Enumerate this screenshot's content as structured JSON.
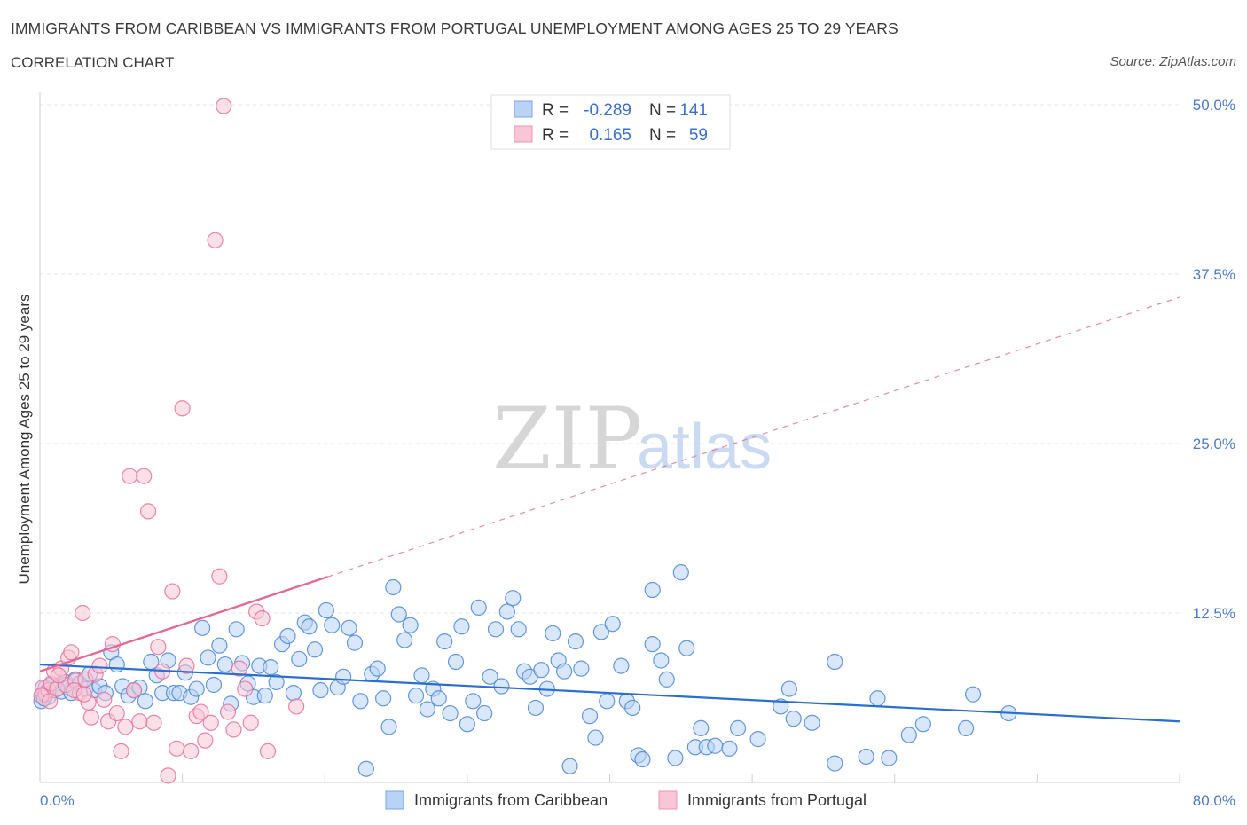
{
  "title": "IMMIGRANTS FROM CARIBBEAN VS IMMIGRANTS FROM PORTUGAL UNEMPLOYMENT AMONG AGES 25 TO 29 YEARS",
  "subtitle": "CORRELATION CHART",
  "source": "Source: ZipAtlas.com",
  "watermark": {
    "zip": "ZIP",
    "atlas": "atlas"
  },
  "legend": {
    "r_label": "R =",
    "n_label": "N =",
    "rows": [
      {
        "r": "-0.289",
        "n": "141",
        "fill": "#b9d3f5",
        "stroke": "#7aa6e6"
      },
      {
        "r": "0.165",
        "n": "59",
        "fill": "#f8c6d6",
        "stroke": "#ee93b2"
      }
    ]
  },
  "chart_data": {
    "type": "scatter",
    "title": "IMMIGRANTS FROM CARIBBEAN VS IMMIGRANTS FROM PORTUGAL UNEMPLOYMENT AMONG AGES 25 TO 29 YEARS",
    "xlabel": "",
    "ylabel": "Unemployment Among Ages 25 to 29 years",
    "xlim": [
      0,
      80
    ],
    "ylim": [
      0,
      50
    ],
    "x_tick_labels": [
      "0.0%",
      "80.0%"
    ],
    "y_ticks": [
      12.5,
      25.0,
      37.5,
      50.0
    ],
    "y_tick_labels": [
      "12.5%",
      "25.0%",
      "37.5%",
      "50.0%"
    ],
    "grid": true,
    "legend_placement": "top-center",
    "series": [
      {
        "name": "Immigrants from Caribbean",
        "color": "#4a86d8",
        "fill": "#b9d3f5",
        "trend": {
          "x": [
            0,
            80
          ],
          "y": [
            8.7,
            4.5
          ],
          "style": "solid",
          "color": "#2a6fd0"
        },
        "points": [
          [
            0.2,
            6.5
          ],
          [
            0.4,
            7.0
          ],
          [
            0.6,
            6.3
          ],
          [
            0.8,
            7.2
          ],
          [
            1.0,
            6.8
          ],
          [
            1.2,
            6.9
          ],
          [
            1.5,
            6.7
          ],
          [
            1.8,
            7.4
          ],
          [
            2.0,
            7.0
          ],
          [
            2.2,
            6.6
          ],
          [
            2.5,
            7.6
          ],
          [
            2.8,
            7.3
          ],
          [
            3.2,
            6.9
          ],
          [
            3.5,
            8.0
          ],
          [
            3.8,
            6.8
          ],
          [
            4.2,
            7.1
          ],
          [
            4.6,
            6.6
          ],
          [
            5.0,
            9.6
          ],
          [
            5.4,
            8.7
          ],
          [
            5.8,
            7.1
          ],
          [
            6.2,
            6.4
          ],
          [
            6.6,
            6.8
          ],
          [
            7.0,
            7.0
          ],
          [
            7.4,
            6.0
          ],
          [
            7.8,
            8.9
          ],
          [
            8.2,
            7.9
          ],
          [
            8.6,
            6.6
          ],
          [
            9.0,
            9.0
          ],
          [
            9.4,
            6.6
          ],
          [
            9.8,
            6.6
          ],
          [
            10.2,
            8.1
          ],
          [
            10.6,
            6.3
          ],
          [
            11.0,
            6.9
          ],
          [
            11.4,
            11.4
          ],
          [
            11.8,
            9.2
          ],
          [
            12.2,
            7.2
          ],
          [
            12.6,
            10.1
          ],
          [
            13.0,
            8.7
          ],
          [
            13.4,
            5.8
          ],
          [
            13.8,
            11.3
          ],
          [
            14.2,
            8.8
          ],
          [
            14.6,
            7.3
          ],
          [
            15.0,
            6.3
          ],
          [
            15.4,
            8.6
          ],
          [
            15.8,
            6.4
          ],
          [
            16.2,
            8.5
          ],
          [
            16.6,
            7.4
          ],
          [
            17.0,
            10.2
          ],
          [
            17.4,
            10.8
          ],
          [
            17.8,
            6.6
          ],
          [
            18.2,
            9.1
          ],
          [
            18.6,
            11.8
          ],
          [
            18.9,
            11.5
          ],
          [
            19.3,
            9.8
          ],
          [
            19.7,
            6.8
          ],
          [
            20.1,
            12.7
          ],
          [
            20.5,
            11.6
          ],
          [
            20.9,
            7.0
          ],
          [
            21.3,
            7.8
          ],
          [
            21.7,
            11.4
          ],
          [
            22.1,
            10.3
          ],
          [
            22.5,
            6.0
          ],
          [
            22.9,
            1.0
          ],
          [
            23.3,
            8.0
          ],
          [
            23.7,
            8.4
          ],
          [
            24.1,
            6.2
          ],
          [
            24.5,
            4.1
          ],
          [
            24.8,
            14.4
          ],
          [
            25.2,
            12.4
          ],
          [
            25.6,
            10.5
          ],
          [
            26.0,
            11.6
          ],
          [
            26.4,
            6.4
          ],
          [
            26.8,
            7.9
          ],
          [
            27.2,
            5.4
          ],
          [
            27.6,
            6.9
          ],
          [
            28.0,
            6.2
          ],
          [
            28.4,
            10.4
          ],
          [
            28.8,
            5.1
          ],
          [
            29.2,
            8.9
          ],
          [
            29.6,
            11.5
          ],
          [
            30.0,
            4.3
          ],
          [
            30.4,
            6.0
          ],
          [
            30.8,
            12.9
          ],
          [
            31.2,
            5.1
          ],
          [
            31.6,
            7.8
          ],
          [
            32.0,
            11.3
          ],
          [
            32.4,
            7.1
          ],
          [
            32.8,
            12.6
          ],
          [
            33.2,
            13.6
          ],
          [
            33.6,
            11.3
          ],
          [
            34.0,
            8.2
          ],
          [
            34.4,
            7.8
          ],
          [
            34.8,
            5.5
          ],
          [
            35.2,
            8.3
          ],
          [
            35.6,
            6.9
          ],
          [
            36.0,
            11.0
          ],
          [
            36.4,
            9.0
          ],
          [
            36.8,
            8.2
          ],
          [
            37.2,
            1.2
          ],
          [
            37.6,
            10.4
          ],
          [
            38.0,
            8.4
          ],
          [
            38.6,
            4.9
          ],
          [
            39.0,
            3.3
          ],
          [
            39.4,
            11.1
          ],
          [
            39.8,
            6.0
          ],
          [
            40.2,
            11.7
          ],
          [
            40.8,
            8.6
          ],
          [
            41.2,
            6.0
          ],
          [
            41.6,
            5.5
          ],
          [
            42.0,
            2.0
          ],
          [
            42.3,
            1.7
          ],
          [
            43.0,
            10.2
          ],
          [
            43.0,
            14.2
          ],
          [
            43.6,
            9.0
          ],
          [
            44.0,
            7.6
          ],
          [
            44.6,
            1.8
          ],
          [
            45.0,
            15.5
          ],
          [
            45.4,
            9.9
          ],
          [
            46.0,
            2.6
          ],
          [
            46.4,
            4.0
          ],
          [
            46.8,
            2.6
          ],
          [
            47.4,
            2.7
          ],
          [
            48.4,
            2.5
          ],
          [
            49.0,
            4.0
          ],
          [
            50.4,
            3.2
          ],
          [
            52.0,
            5.6
          ],
          [
            52.6,
            6.9
          ],
          [
            52.9,
            4.7
          ],
          [
            54.2,
            4.4
          ],
          [
            55.8,
            1.4
          ],
          [
            55.8,
            8.9
          ],
          [
            58.0,
            1.9
          ],
          [
            58.8,
            6.2
          ],
          [
            59.6,
            1.8
          ],
          [
            61.0,
            3.5
          ],
          [
            62.0,
            4.3
          ],
          [
            65.0,
            4.0
          ],
          [
            65.5,
            6.5
          ],
          [
            68.0,
            5.1
          ],
          [
            0.1,
            6.0
          ],
          [
            0.3,
            6.2
          ]
        ]
      },
      {
        "name": "Immigrants from Portugal",
        "color": "#e8709a",
        "fill": "#f8c6d6",
        "trend": {
          "x": [
            0,
            80
          ],
          "y": [
            8.2,
            35.8
          ],
          "solid_until_x": 20.2,
          "style": "solid-then-dashed",
          "color": "#e56a93"
        },
        "points": [
          [
            0.2,
            7.0
          ],
          [
            0.4,
            6.5
          ],
          [
            0.6,
            6.8
          ],
          [
            0.8,
            7.3
          ],
          [
            1.0,
            8.2
          ],
          [
            1.2,
            6.9
          ],
          [
            1.5,
            8.4
          ],
          [
            1.8,
            7.2
          ],
          [
            2.0,
            9.2
          ],
          [
            2.2,
            9.6
          ],
          [
            2.5,
            7.5
          ],
          [
            2.8,
            6.6
          ],
          [
            3.0,
            12.5
          ],
          [
            3.2,
            7.6
          ],
          [
            3.4,
            5.9
          ],
          [
            3.6,
            4.8
          ],
          [
            3.9,
            8.0
          ],
          [
            4.2,
            8.6
          ],
          [
            4.5,
            6.1
          ],
          [
            4.8,
            4.5
          ],
          [
            5.1,
            10.2
          ],
          [
            5.4,
            5.1
          ],
          [
            5.7,
            2.3
          ],
          [
            6.0,
            4.1
          ],
          [
            6.3,
            22.6
          ],
          [
            6.6,
            6.8
          ],
          [
            7.0,
            4.5
          ],
          [
            7.3,
            22.6
          ],
          [
            7.6,
            20.0
          ],
          [
            8.0,
            4.4
          ],
          [
            8.3,
            10.0
          ],
          [
            8.6,
            8.2
          ],
          [
            9.0,
            0.5
          ],
          [
            9.3,
            14.1
          ],
          [
            9.6,
            2.5
          ],
          [
            10.0,
            27.6
          ],
          [
            10.3,
            8.6
          ],
          [
            10.6,
            2.3
          ],
          [
            11.0,
            4.9
          ],
          [
            11.3,
            5.2
          ],
          [
            11.6,
            3.1
          ],
          [
            12.0,
            4.4
          ],
          [
            12.3,
            40.0
          ],
          [
            12.6,
            15.2
          ],
          [
            12.9,
            49.9
          ],
          [
            13.2,
            5.2
          ],
          [
            13.6,
            3.9
          ],
          [
            14.0,
            8.4
          ],
          [
            14.4,
            6.9
          ],
          [
            14.8,
            4.4
          ],
          [
            15.2,
            12.6
          ],
          [
            15.6,
            12.1
          ],
          [
            16.0,
            2.3
          ],
          [
            18.0,
            5.6
          ],
          [
            0.1,
            6.4
          ],
          [
            0.7,
            6.0
          ],
          [
            1.3,
            7.9
          ],
          [
            2.4,
            6.8
          ],
          [
            3.1,
            6.5
          ]
        ]
      }
    ]
  },
  "bottom_legend": [
    {
      "label": "Immigrants from Caribbean",
      "fill": "#b9d3f5",
      "stroke": "#7aa6e6"
    },
    {
      "label": "Immigrants from Portugal",
      "fill": "#f8c6d6",
      "stroke": "#ee93b2"
    }
  ]
}
